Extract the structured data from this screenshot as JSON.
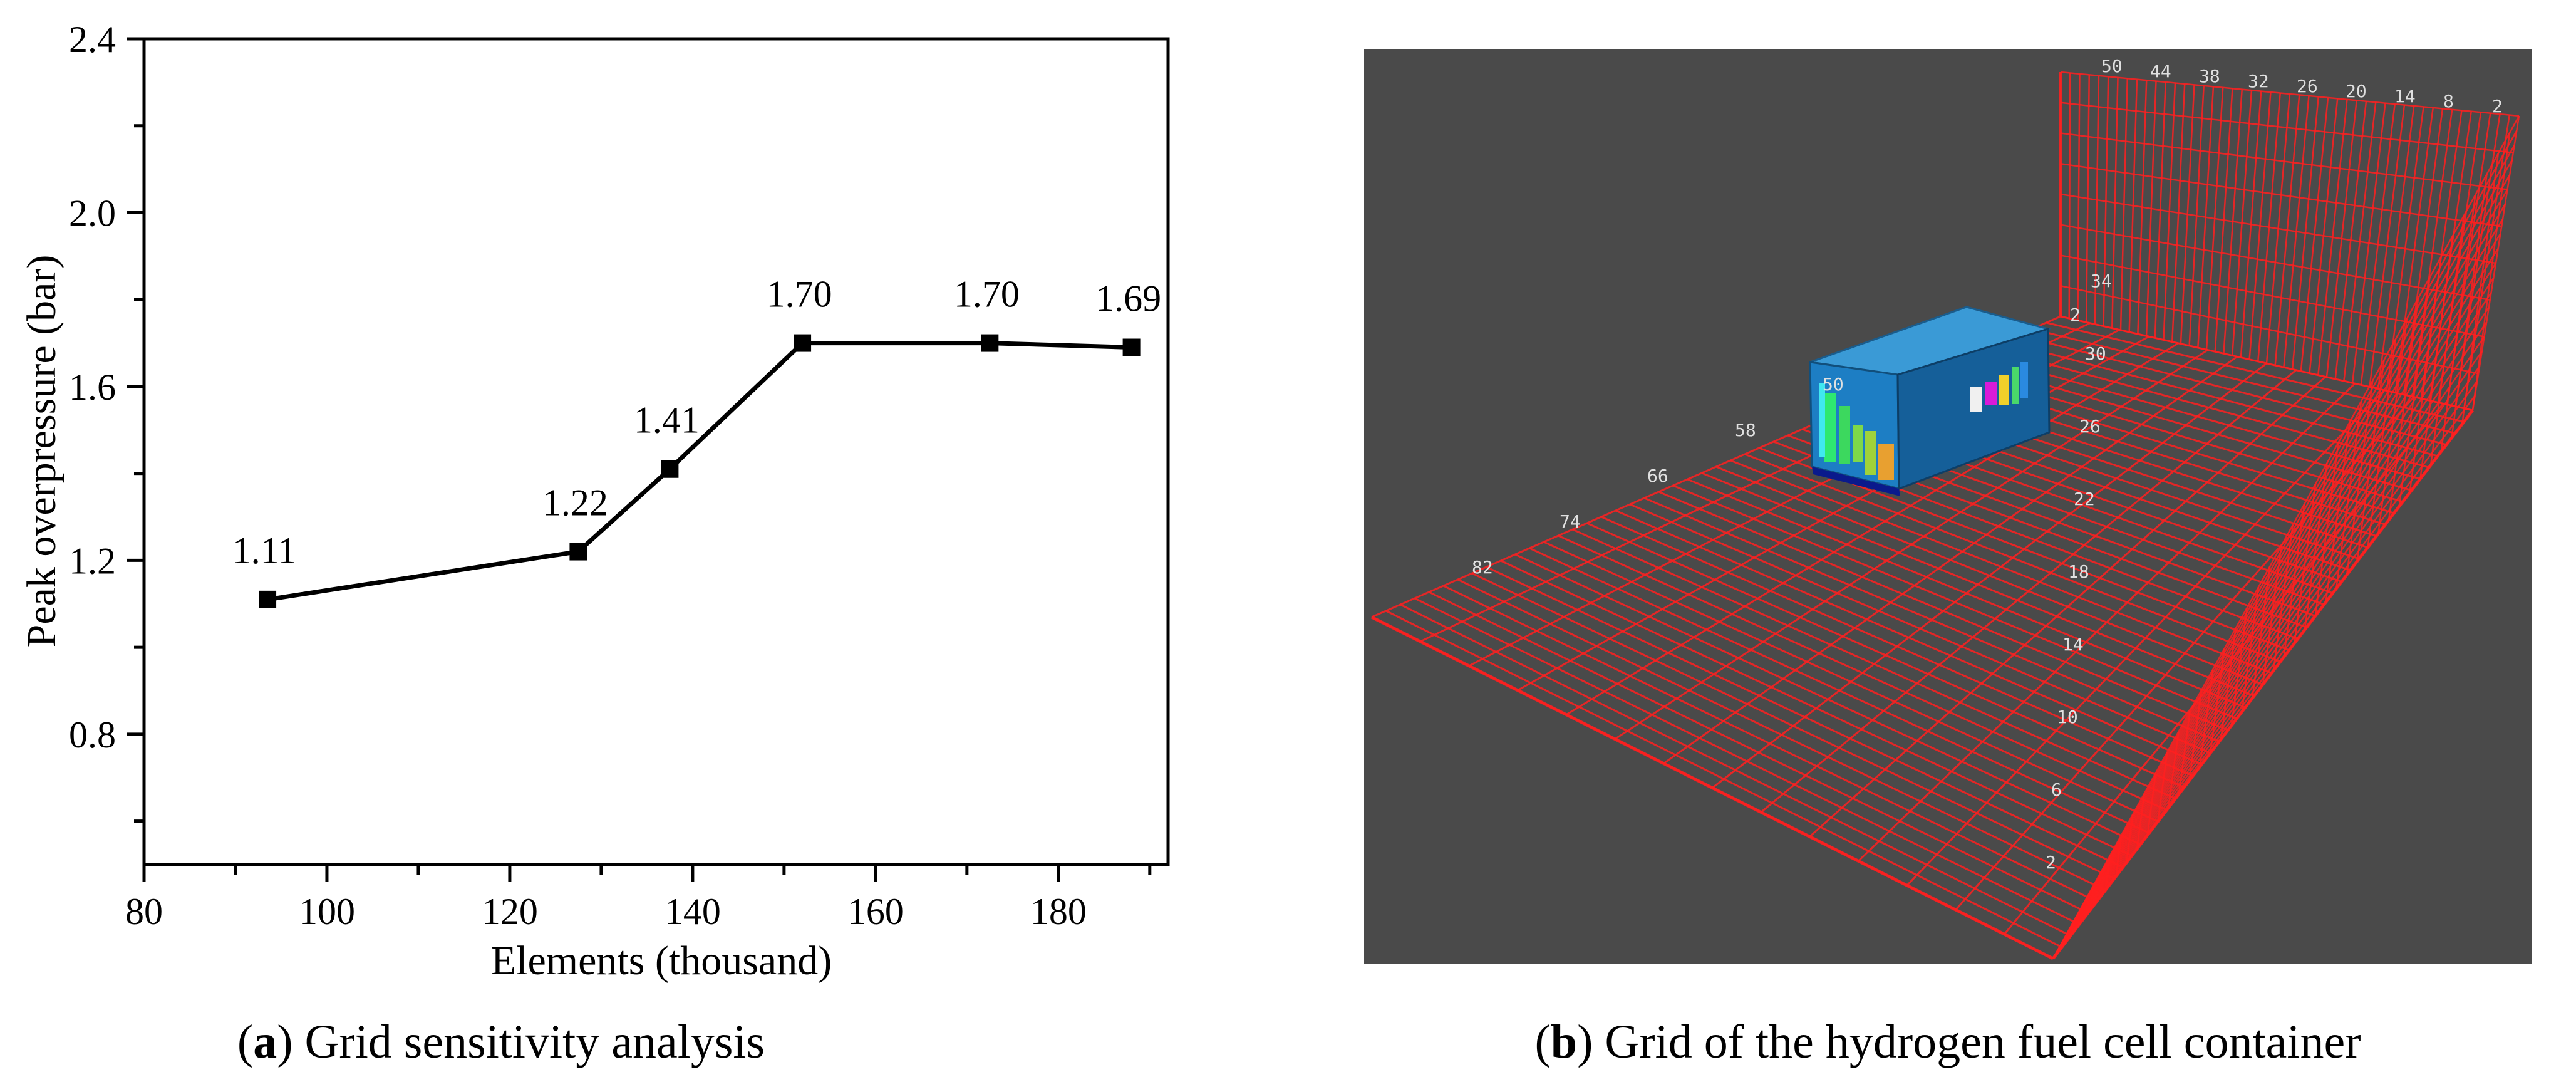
{
  "chart_data": {
    "type": "line",
    "title": "",
    "xlabel": "Elements (thousand)",
    "ylabel": "Peak overpressure (bar)",
    "xlim": [
      80,
      192
    ],
    "ylim": [
      0.5,
      2.4
    ],
    "xticks": [
      80,
      100,
      120,
      140,
      160,
      180
    ],
    "yticks": [
      0.8,
      1.2,
      1.6,
      2.0,
      2.4
    ],
    "xtick_labels": [
      "80",
      "100",
      "120",
      "140",
      "160",
      "180"
    ],
    "ytick_labels": [
      "0.8",
      "1.2",
      "1.6",
      "2.0",
      "2.4"
    ],
    "x": [
      93.5,
      127.5,
      137.5,
      152,
      172.5,
      188
    ],
    "values": [
      1.11,
      1.22,
      1.41,
      1.7,
      1.7,
      1.69
    ],
    "data_labels": [
      "1.11",
      "1.22",
      "1.41",
      "1.70",
      "1.70",
      "1.69"
    ],
    "marker": "square",
    "grid": false
  },
  "captions": {
    "a": {
      "letter": "a",
      "text": "Grid sensitivity analysis"
    },
    "b": {
      "letter": "b",
      "text": "Grid of the hydrogen fuel cell container"
    }
  },
  "mesh_view": {
    "top_labels": [
      "50",
      "44",
      "38",
      "32",
      "26",
      "20",
      "14",
      "8",
      "2"
    ],
    "left_labels": [
      "82",
      "74",
      "66",
      "58",
      "50"
    ],
    "right_labels": [
      "34",
      "30",
      "26",
      "22",
      "18",
      "14",
      "10",
      "6",
      "2"
    ],
    "corner_label": "2",
    "colors": {
      "background": "#4a4a4a",
      "grid": "#ff2020",
      "container": "#1f7fbf"
    }
  }
}
